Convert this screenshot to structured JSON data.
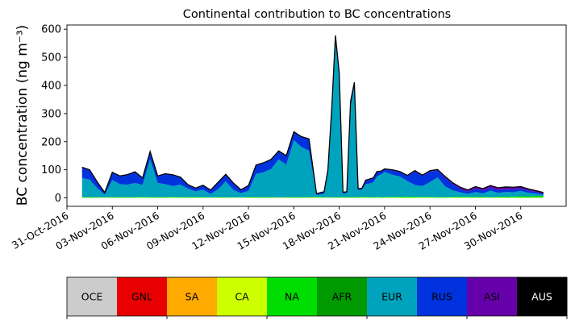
{
  "chart_data": {
    "type": "area",
    "title": "Continental contribution to BC concentrations",
    "ylabel": "BC concentration (ng m⁻³)",
    "xlabel": "",
    "ylim": [
      -30,
      615
    ],
    "xlim": [
      "2016-10-31",
      "2016-12-03"
    ],
    "grid": false,
    "stacked": true,
    "yticks": [
      0,
      100,
      200,
      300,
      400,
      500,
      600
    ],
    "xticks": [
      {
        "date": "2016-10-31",
        "label": "31-Oct-2016"
      },
      {
        "date": "2016-11-03",
        "label": "03-Nov-2016"
      },
      {
        "date": "2016-11-06",
        "label": "06-Nov-2016"
      },
      {
        "date": "2016-11-09",
        "label": "09-Nov-2016"
      },
      {
        "date": "2016-11-12",
        "label": "12-Nov-2016"
      },
      {
        "date": "2016-11-15",
        "label": "15-Nov-2016"
      },
      {
        "date": "2016-11-18",
        "label": "18-Nov-2016"
      },
      {
        "date": "2016-11-21",
        "label": "21-Nov-2016"
      },
      {
        "date": "2016-11-24",
        "label": "24-Nov-2016"
      },
      {
        "date": "2016-11-27",
        "label": "27-Nov-2016"
      },
      {
        "date": "2016-11-30",
        "label": "30-Nov-2016"
      }
    ],
    "x": [
      "2016-11-01",
      "2016-11-01 12:00",
      "2016-11-02",
      "2016-11-02 12:00",
      "2016-11-03",
      "2016-11-03 12:00",
      "2016-11-04",
      "2016-11-04 12:00",
      "2016-11-05",
      "2016-11-05 12:00",
      "2016-11-06",
      "2016-11-06 12:00",
      "2016-11-07",
      "2016-11-07 12:00",
      "2016-11-08",
      "2016-11-08 12:00",
      "2016-11-09",
      "2016-11-09 12:00",
      "2016-11-10",
      "2016-11-10 12:00",
      "2016-11-11",
      "2016-11-11 12:00",
      "2016-11-12",
      "2016-11-12 12:00",
      "2016-11-13",
      "2016-11-13 12:00",
      "2016-11-14",
      "2016-11-14 12:00",
      "2016-11-15",
      "2016-11-15 12:00",
      "2016-11-16",
      "2016-11-16 12:00",
      "2016-11-17",
      "2016-11-17 06:00",
      "2016-11-17 12:00",
      "2016-11-17 18:00",
      "2016-11-18",
      "2016-11-18 06:00",
      "2016-11-18 12:00",
      "2016-11-18 18:00",
      "2016-11-19",
      "2016-11-19 06:00",
      "2016-11-19 12:00",
      "2016-11-19 18:00",
      "2016-11-20",
      "2016-11-20 06:00",
      "2016-11-20 12:00",
      "2016-11-20 18:00",
      "2016-11-21",
      "2016-11-21 12:00",
      "2016-11-22",
      "2016-11-22 12:00",
      "2016-11-23",
      "2016-11-23 12:00",
      "2016-11-24",
      "2016-11-24 12:00",
      "2016-11-25",
      "2016-11-25 12:00",
      "2016-11-26",
      "2016-11-26 12:00",
      "2016-11-27",
      "2016-11-27 12:00",
      "2016-11-28",
      "2016-11-28 12:00",
      "2016-11-29",
      "2016-11-29 12:00",
      "2016-11-30",
      "2016-11-30 12:00",
      "2016-12-01",
      "2016-12-01 12:00"
    ],
    "series": [
      {
        "name": "OCE",
        "color": "#cccccc",
        "values": [
          0,
          0,
          0,
          0,
          0,
          0,
          0,
          0,
          0,
          0,
          0,
          0,
          0,
          0,
          0,
          0,
          0,
          0,
          0,
          0,
          0,
          0,
          0,
          0,
          0,
          0,
          0,
          0,
          0,
          0,
          0,
          0,
          0,
          0,
          0,
          0,
          0,
          0,
          0,
          0,
          0,
          0,
          0,
          0,
          0,
          0,
          0,
          0,
          0,
          0,
          0,
          0,
          0,
          0,
          0,
          0,
          0,
          0,
          0,
          0,
          0,
          0,
          0,
          0,
          0,
          0,
          0,
          0,
          0,
          0
        ]
      },
      {
        "name": "GNL",
        "color": "#e80000",
        "values": [
          0,
          0,
          0,
          0,
          0,
          0,
          0,
          0,
          0,
          0,
          0,
          0,
          0,
          0,
          0,
          0,
          0,
          0,
          0,
          0,
          0,
          0,
          0,
          0,
          0,
          0,
          0,
          0,
          0,
          0,
          0,
          0,
          0,
          0,
          0,
          0,
          0,
          0,
          0,
          0,
          0,
          0,
          0,
          0,
          0,
          0,
          0,
          0,
          0,
          0,
          0,
          0,
          0,
          0,
          0,
          0,
          0,
          0,
          0,
          0,
          0,
          0,
          0,
          0,
          0,
          0,
          0,
          0,
          0,
          0
        ]
      },
      {
        "name": "SA",
        "color": "#ffaa00",
        "values": [
          0,
          0,
          0,
          0,
          0,
          0,
          0,
          0,
          0,
          0,
          0,
          0,
          0,
          0,
          0,
          0,
          0,
          0,
          0,
          0,
          0,
          0,
          0,
          0,
          0,
          0,
          0,
          0,
          0,
          0,
          0,
          0,
          0,
          0,
          0,
          0,
          0,
          0,
          0,
          0,
          0,
          0,
          0,
          0,
          0,
          0,
          0,
          0,
          0,
          0,
          0,
          0,
          0,
          0,
          0,
          0,
          0,
          0,
          0,
          0,
          0,
          0,
          0,
          0,
          0,
          0,
          0,
          0,
          0,
          0
        ]
      },
      {
        "name": "CA",
        "color": "#ccff00",
        "values": [
          1,
          1,
          1,
          1,
          1,
          1,
          1,
          1,
          1,
          1,
          1,
          1,
          1,
          1,
          1,
          1,
          1,
          1,
          1,
          1,
          1,
          1,
          1,
          1,
          1,
          1,
          1,
          1,
          1,
          1,
          1,
          1,
          1,
          1,
          1,
          1,
          1,
          1,
          1,
          1,
          1,
          1,
          1,
          1,
          1,
          1,
          1,
          1,
          1,
          1,
          1,
          1,
          1,
          1,
          1,
          1,
          1,
          1,
          1,
          1,
          1,
          1,
          1,
          1,
          1,
          1,
          1,
          1,
          1,
          1
        ]
      },
      {
        "name": "NA",
        "color": "#00dd00",
        "values": [
          2,
          2,
          2,
          1,
          2,
          2,
          2,
          2,
          3,
          2,
          2,
          2,
          3,
          2,
          2,
          2,
          2,
          1,
          2,
          2,
          1,
          1,
          2,
          2,
          2,
          2,
          1,
          2,
          2,
          2,
          2,
          3,
          2,
          1,
          1,
          2,
          2,
          2,
          2,
          2,
          2,
          2,
          3,
          3,
          2,
          2,
          3,
          2,
          2,
          3,
          3,
          4,
          3,
          3,
          3,
          2,
          2,
          3,
          3,
          3,
          3,
          3,
          2,
          3,
          3,
          4,
          5,
          5,
          6,
          6
        ]
      },
      {
        "name": "AFR",
        "color": "#009900",
        "values": [
          0,
          0,
          0,
          0,
          0,
          0,
          0,
          0,
          0,
          0,
          0,
          0,
          0,
          0,
          0,
          0,
          0,
          0,
          0,
          0,
          0,
          0,
          0,
          0,
          0,
          0,
          0,
          0,
          0,
          0,
          0,
          0,
          0,
          0,
          0,
          0,
          0,
          0,
          0,
          0,
          0,
          0,
          0,
          0,
          0,
          0,
          0,
          0,
          0,
          0,
          0,
          0,
          0,
          0,
          0,
          0,
          0,
          0,
          0,
          0,
          0,
          0,
          0,
          0,
          0,
          0,
          0,
          0,
          0,
          0
        ]
      },
      {
        "name": "EUR",
        "color": "#00a3bd",
        "values": [
          68,
          62,
          32,
          10,
          60,
          46,
          44,
          50,
          42,
          135,
          50,
          46,
          38,
          44,
          30,
          20,
          26,
          12,
          28,
          56,
          26,
          15,
          22,
          82,
          88,
          100,
          135,
          115,
          202,
          178,
          165,
          6,
          12,
          88,
          300,
          555,
          420,
          12,
          14,
          320,
          392,
          25,
          25,
          45,
          48,
          52,
          72,
          80,
          90,
          78,
          72,
          55,
          42,
          38,
          52,
          70,
          38,
          23,
          16,
          10,
          17,
          12,
          23,
          14,
          17,
          15,
          19,
          12,
          8,
          4
        ]
      },
      {
        "name": "RUS",
        "color": "#0033dd",
        "values": [
          36,
          33,
          20,
          6,
          26,
          27,
          34,
          38,
          23,
          25,
          23,
          35,
          38,
          25,
          12,
          10,
          14,
          12,
          23,
          23,
          23,
          10,
          17,
          30,
          32,
          32,
          28,
          30,
          28,
          35,
          40,
          4,
          6,
          8,
          10,
          18,
          20,
          4,
          4,
          18,
          14,
          4,
          4,
          12,
          14,
          14,
          16,
          10,
          8,
          16,
          16,
          18,
          48,
          36,
          38,
          25,
          30,
          22,
          12,
          8,
          12,
          10,
          10,
          10,
          10,
          10,
          8,
          8,
          6,
          4
        ]
      },
      {
        "name": "ASI",
        "color": "#6600aa",
        "values": [
          2,
          2,
          2,
          1,
          2,
          2,
          2,
          2,
          2,
          2,
          2,
          2,
          2,
          2,
          2,
          2,
          2,
          2,
          2,
          2,
          2,
          2,
          2,
          2,
          2,
          2,
          2,
          2,
          2,
          2,
          2,
          1,
          1,
          1,
          2,
          2,
          2,
          1,
          1,
          2,
          2,
          1,
          1,
          2,
          2,
          2,
          2,
          2,
          2,
          2,
          2,
          2,
          3,
          3,
          3,
          3,
          5,
          5,
          6,
          6,
          7,
          7,
          8,
          8,
          8,
          8,
          7,
          6,
          5,
          4
        ]
      },
      {
        "name": "AUS",
        "color": "#000000",
        "values": [
          0,
          0,
          0,
          0,
          0,
          0,
          0,
          0,
          0,
          0,
          0,
          0,
          0,
          0,
          0,
          0,
          0,
          0,
          0,
          0,
          0,
          0,
          0,
          0,
          0,
          0,
          0,
          0,
          0,
          0,
          0,
          0,
          0,
          0,
          0,
          0,
          0,
          0,
          0,
          0,
          0,
          0,
          0,
          0,
          0,
          0,
          0,
          0,
          0,
          0,
          0,
          0,
          0,
          0,
          0,
          0,
          0,
          0,
          0,
          0,
          0,
          0,
          0,
          0,
          0,
          0,
          0,
          0,
          0,
          0
        ]
      }
    ],
    "legend": {
      "position": "bottom",
      "items": [
        {
          "label": "OCE",
          "color": "#cccccc",
          "text_color": "#000000"
        },
        {
          "label": "GNL",
          "color": "#e80000",
          "text_color": "#000000"
        },
        {
          "label": "SA",
          "color": "#ffaa00",
          "text_color": "#000000"
        },
        {
          "label": "CA",
          "color": "#ccff00",
          "text_color": "#000000"
        },
        {
          "label": "NA",
          "color": "#00dd00",
          "text_color": "#000000"
        },
        {
          "label": "AFR",
          "color": "#009900",
          "text_color": "#000000"
        },
        {
          "label": "EUR",
          "color": "#00a3bd",
          "text_color": "#000000"
        },
        {
          "label": "RUS",
          "color": "#0033dd",
          "text_color": "#000000"
        },
        {
          "label": "ASI",
          "color": "#6600aa",
          "text_color": "#000000"
        },
        {
          "label": "AUS",
          "color": "#000000",
          "text_color": "#ffffff"
        }
      ]
    }
  }
}
